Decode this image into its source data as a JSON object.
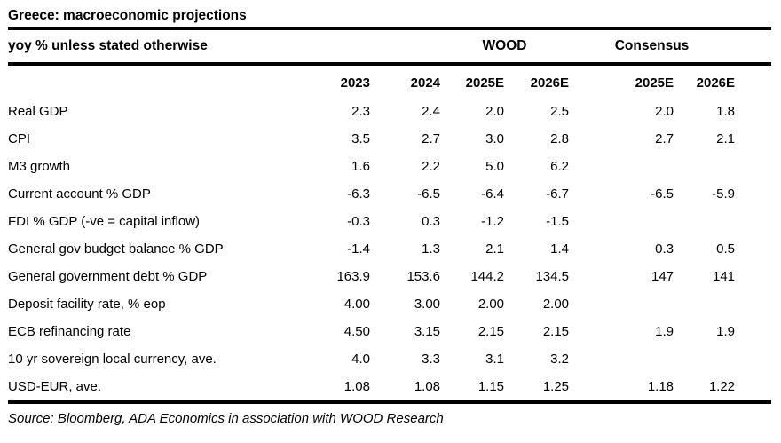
{
  "title": "Greece: macroeconomic projections",
  "table": {
    "subtitle": "yoy % unless stated otherwise",
    "group_headers": {
      "wood": "WOOD",
      "consensus": "Consensus"
    },
    "year_headers": [
      "2023",
      "2024",
      "2025E",
      "2026E",
      "2025E",
      "2026E"
    ],
    "rows": [
      {
        "label": "Real GDP",
        "values": [
          "2.3",
          "2.4",
          "2.0",
          "2.5",
          "2.0",
          "1.8"
        ]
      },
      {
        "label": "CPI",
        "values": [
          "3.5",
          "2.7",
          "3.0",
          "2.8",
          "2.7",
          "2.1"
        ]
      },
      {
        "label": "M3 growth",
        "values": [
          "1.6",
          "2.2",
          "5.0",
          "6.2",
          "",
          ""
        ]
      },
      {
        "label": "Current account % GDP",
        "values": [
          "-6.3",
          "-6.5",
          "-6.4",
          "-6.7",
          "-6.5",
          "-5.9"
        ]
      },
      {
        "label": "FDI % GDP (-ve = capital inflow)",
        "values": [
          "-0.3",
          "0.3",
          "-1.2",
          "-1.5",
          "",
          ""
        ]
      },
      {
        "label": "General gov budget balance % GDP",
        "values": [
          "-1.4",
          "1.3",
          "2.1",
          "1.4",
          "0.3",
          "0.5"
        ]
      },
      {
        "label": "General government debt % GDP",
        "values": [
          "163.9",
          "153.6",
          "144.2",
          "134.5",
          "147",
          "141"
        ]
      },
      {
        "label": "Deposit facility rate, % eop",
        "values": [
          "4.00",
          "3.00",
          "2.00",
          "2.00",
          "",
          ""
        ]
      },
      {
        "label": "ECB refinancing rate",
        "values": [
          "4.50",
          "3.15",
          "2.15",
          "2.15",
          "1.9",
          "1.9"
        ]
      },
      {
        "label": "10 yr sovereign local currency, ave.",
        "values": [
          "4.0",
          "3.3",
          "3.1",
          "3.2",
          "",
          ""
        ]
      },
      {
        "label": "USD-EUR, ave.",
        "values": [
          "1.08",
          "1.08",
          "1.15",
          "1.25",
          "1.18",
          "1.22"
        ]
      }
    ]
  },
  "source": "Source: Bloomberg, ADA Economics in association with WOOD Research",
  "colors": {
    "text": "#000000",
    "background": "#ffffff",
    "rule": "#000000"
  }
}
